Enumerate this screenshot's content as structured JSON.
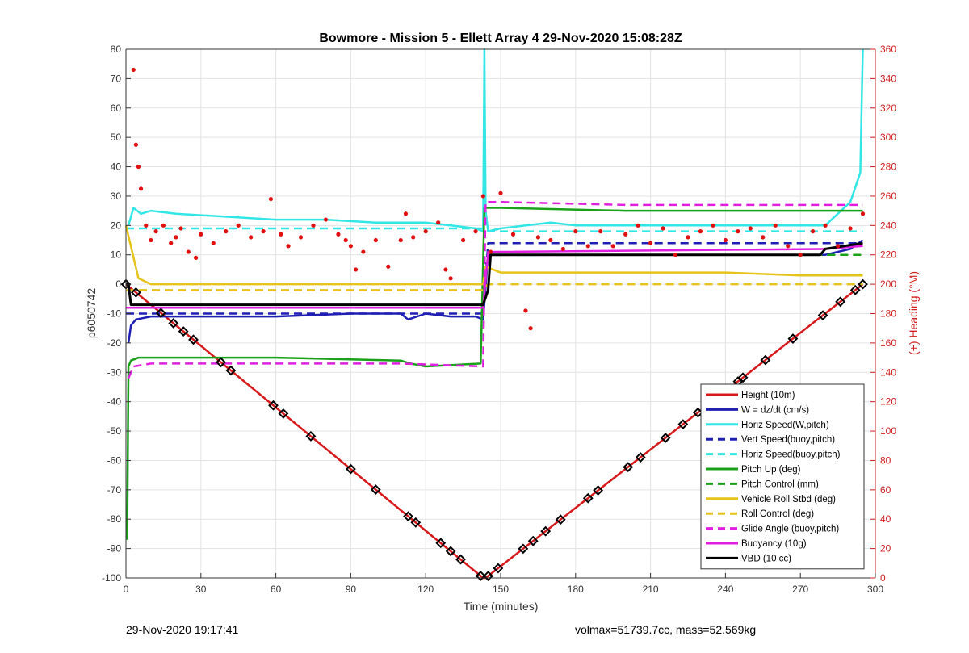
{
  "chart_data": {
    "type": "line",
    "title": "Bowmore - Mission 5 - Ellett Array 4 29-Nov-2020 15:08:28Z",
    "xlabel": "Time (minutes)",
    "ylabel": "p6050742",
    "ylabel_right": "(+) Heading (°M)",
    "xlim": [
      0,
      300
    ],
    "ylim": [
      -100,
      80
    ],
    "ylim_right": [
      0,
      360
    ],
    "x_ticks": [
      0,
      30,
      60,
      90,
      120,
      150,
      180,
      210,
      240,
      270,
      300
    ],
    "y_ticks": [
      -100,
      -90,
      -80,
      -70,
      -60,
      -50,
      -40,
      -30,
      -20,
      -10,
      0,
      10,
      20,
      30,
      40,
      50,
      60,
      70,
      80
    ],
    "y_ticks_right": [
      0,
      20,
      40,
      60,
      80,
      100,
      120,
      140,
      160,
      180,
      200,
      220,
      240,
      260,
      280,
      300,
      320,
      340,
      360
    ],
    "grid": true,
    "legend_position": "bottom-right",
    "colors": {
      "red": "#d7191c",
      "blue": "#1f1fb4",
      "cyan": "#33e6e6",
      "green": "#1aa11a",
      "yellow": "#e6c31a",
      "magenta": "#e01ee0",
      "black": "#000000",
      "axis_right": "#d02020"
    },
    "series": [
      {
        "name": "Height (10m)",
        "color": "red",
        "style": "solid",
        "x": [
          0,
          143,
          144,
          295
        ],
        "y": [
          0,
          -100,
          -100,
          0
        ]
      },
      {
        "name": "W = dz/dt (cm/s)",
        "color": "blue",
        "style": "solid",
        "x": [
          1,
          2,
          4,
          10,
          30,
          60,
          90,
          100,
          110,
          113,
          120,
          130,
          140,
          143,
          145,
          150,
          180,
          210,
          240,
          270,
          280,
          290,
          295
        ],
        "y": [
          -20,
          -14,
          -12,
          -11,
          -11,
          -11,
          -10,
          -10,
          -10,
          -12,
          -10,
          -11,
          -11,
          -12,
          10,
          10,
          10,
          10,
          10,
          10,
          10,
          12,
          15
        ]
      },
      {
        "name": "Horiz Speed(W,pitch)",
        "color": "cyan",
        "style": "solid",
        "x": [
          1,
          3,
          6,
          10,
          20,
          40,
          60,
          80,
          100,
          120,
          130,
          140,
          143,
          143.5,
          144,
          145,
          150,
          160,
          170,
          180,
          200,
          220,
          240,
          260,
          280,
          290,
          294,
          295
        ],
        "y": [
          20,
          26,
          24,
          25,
          24,
          23,
          22,
          22,
          21,
          21,
          20,
          19,
          18,
          80,
          25,
          18,
          19,
          20,
          21,
          20,
          20,
          20,
          20,
          20,
          20,
          28,
          38,
          80
        ]
      },
      {
        "name": "Vert Speed(buoy,pitch)",
        "color": "blue",
        "style": "dashed",
        "x": [
          0,
          143,
          145,
          295
        ],
        "y": [
          -10,
          -10,
          14,
          14
        ]
      },
      {
        "name": "Horiz Speed(buoy,pitch)",
        "color": "cyan",
        "style": "dashed",
        "x": [
          0,
          143,
          145,
          295
        ],
        "y": [
          19,
          19,
          18,
          18
        ]
      },
      {
        "name": "Pitch Up (deg)",
        "color": "green",
        "style": "solid",
        "x": [
          0.5,
          1,
          2,
          5,
          20,
          60,
          110,
          114,
          120,
          142,
          143.5,
          145,
          150,
          200,
          250,
          290,
          295
        ],
        "y": [
          -87,
          -28,
          -26,
          -25,
          -25,
          -25,
          -26,
          -27,
          -28,
          -27,
          26,
          26,
          26,
          25,
          25,
          25,
          25
        ]
      },
      {
        "name": "Pitch Control (mm)",
        "color": "green",
        "style": "dashed",
        "x": [
          0,
          143,
          145,
          295
        ],
        "y": [
          -8,
          -8,
          10,
          10
        ]
      },
      {
        "name": "Vehicle Roll Stbd (deg)",
        "color": "yellow",
        "style": "solid",
        "x": [
          0,
          5,
          10,
          30,
          60,
          90,
          120,
          143,
          144,
          150,
          180,
          210,
          240,
          270,
          295
        ],
        "y": [
          20,
          2,
          0,
          0,
          0,
          0,
          0,
          0,
          6,
          4,
          4,
          4,
          4,
          3,
          3
        ]
      },
      {
        "name": "Roll Control (deg)",
        "color": "yellow",
        "style": "dashed",
        "x": [
          0,
          143,
          145,
          295
        ],
        "y": [
          -2,
          -2,
          0,
          0
        ]
      },
      {
        "name": "Glide Angle (buoy,pitch)",
        "color": "magenta",
        "style": "dashed",
        "x": [
          1,
          3,
          10,
          60,
          110,
          143,
          144,
          145,
          150,
          200,
          250,
          295
        ],
        "y": [
          -32,
          -28,
          -27,
          -27,
          -27,
          -28,
          28,
          28,
          28,
          27,
          27,
          27
        ]
      },
      {
        "name": "Buoyancy (10g)",
        "color": "magenta",
        "style": "solid",
        "x": [
          0,
          143,
          145,
          280,
          295
        ],
        "y": [
          -8,
          -8,
          11,
          12,
          13
        ]
      },
      {
        "name": "VBD (10 cc)",
        "color": "black",
        "style": "solid",
        "x": [
          0,
          1,
          2,
          143,
          145,
          146,
          150,
          200,
          278,
          280,
          295
        ],
        "y": [
          0,
          0,
          -7,
          -7,
          -2,
          10,
          10,
          10,
          10,
          12,
          14
        ]
      }
    ],
    "heading_points_deg": {
      "x": [
        3,
        4,
        5,
        6,
        8,
        10,
        12,
        15,
        18,
        20,
        22,
        25,
        28,
        30,
        35,
        40,
        45,
        50,
        55,
        58,
        62,
        65,
        70,
        75,
        80,
        85,
        88,
        90,
        92,
        95,
        100,
        105,
        110,
        112,
        115,
        120,
        125,
        128,
        130,
        135,
        140,
        143,
        146,
        150,
        155,
        160,
        162,
        165,
        170,
        175,
        180,
        185,
        190,
        195,
        200,
        205,
        210,
        215,
        220,
        225,
        230,
        235,
        240,
        245,
        250,
        255,
        260,
        265,
        270,
        275,
        280,
        285,
        290,
        295
      ],
      "y": [
        346,
        295,
        280,
        265,
        240,
        230,
        236,
        240,
        228,
        232,
        238,
        222,
        218,
        234,
        228,
        236,
        240,
        232,
        236,
        258,
        234,
        226,
        232,
        240,
        244,
        234,
        230,
        226,
        210,
        222,
        230,
        212,
        230,
        248,
        232,
        236,
        242,
        210,
        204,
        230,
        236,
        260,
        222,
        262,
        234,
        182,
        170,
        232,
        230,
        224,
        236,
        226,
        236,
        226,
        234,
        240,
        228,
        238,
        220,
        232,
        236,
        240,
        230,
        236,
        238,
        232,
        240,
        226,
        220,
        236,
        240,
        226,
        238,
        248
      ]
    },
    "legend_items": [
      "Height (10m)",
      "W = dz/dt (cm/s)",
      "Horiz Speed(W,pitch)",
      "Vert Speed(buoy,pitch)",
      "Horiz Speed(buoy,pitch)",
      "Pitch Up (deg)",
      "Pitch Control (mm)",
      "Vehicle Roll Stbd (deg)",
      "Roll Control (deg)",
      "Glide Angle (buoy,pitch)",
      "Buoyancy (10g)",
      "VBD (10 cc)"
    ],
    "legend_styles": [
      [
        "red",
        "solid"
      ],
      [
        "blue",
        "solid"
      ],
      [
        "cyan",
        "solid"
      ],
      [
        "blue",
        "dashed"
      ],
      [
        "cyan",
        "dashed"
      ],
      [
        "green",
        "solid"
      ],
      [
        "green",
        "dashed"
      ],
      [
        "yellow",
        "solid"
      ],
      [
        "yellow",
        "dashed"
      ],
      [
        "magenta",
        "dashed"
      ],
      [
        "magenta",
        "solid"
      ],
      [
        "black",
        "solid"
      ]
    ],
    "marker_times": [
      0,
      4,
      14,
      19,
      23,
      27,
      38,
      42,
      59,
      63,
      74,
      90,
      100,
      113,
      116,
      126,
      130,
      134,
      142,
      145,
      149,
      159,
      163,
      168,
      174,
      185,
      189,
      201,
      206,
      216,
      223,
      229,
      235,
      245,
      247,
      256,
      267,
      279,
      286,
      292,
      295
    ]
  },
  "footer": {
    "timestamp": "29-Nov-2020 19:17:41",
    "stats": "volmax=51739.7cc, mass=52.569kg"
  }
}
